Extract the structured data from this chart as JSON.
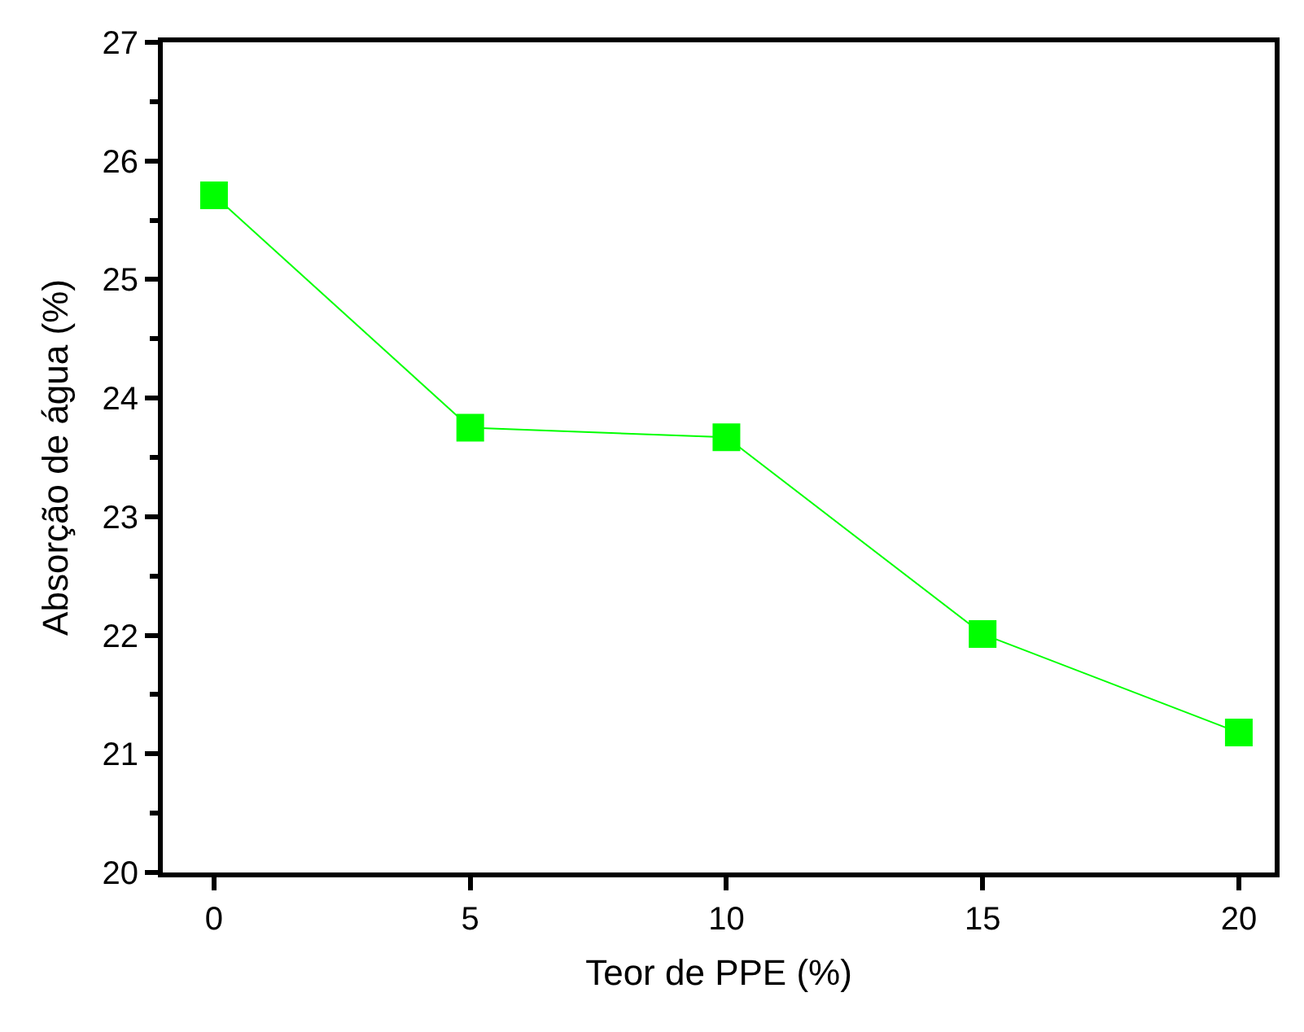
{
  "chart_data": {
    "type": "line",
    "xlabel": "Teor de PPE (%)",
    "ylabel": "Absorção de água (%)",
    "x": [
      0,
      5,
      10,
      15,
      20
    ],
    "series": [
      {
        "color": "#00ff00",
        "values": [
          25.71,
          23.75,
          23.67,
          22.01,
          21.18
        ]
      }
    ],
    "marker": "square",
    "line_style": "solid",
    "xlim": [
      -1,
      20.7
    ],
    "xticks": [
      0,
      5,
      10,
      15,
      20
    ],
    "ylim": [
      20,
      27
    ],
    "yticks": [
      20,
      21,
      22,
      23,
      24,
      25,
      26,
      27
    ],
    "legend": false
  }
}
